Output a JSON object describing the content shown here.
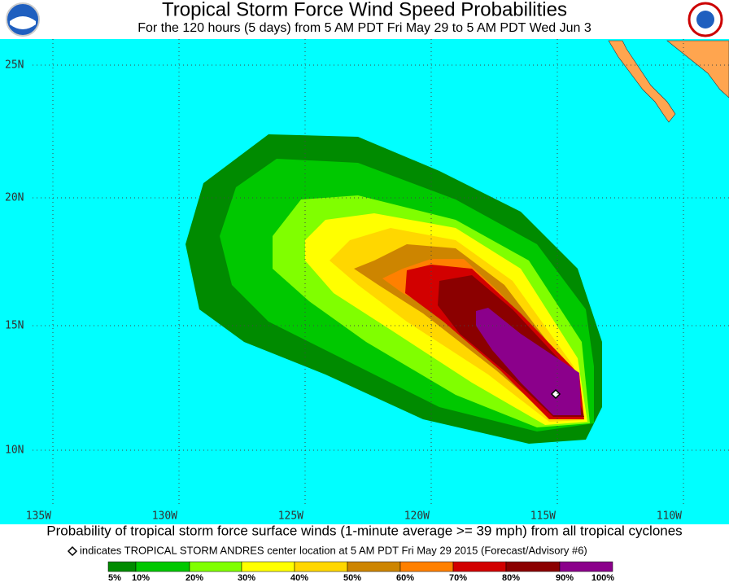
{
  "header": {
    "title": "Tropical Storm Force Wind Speed Probabilities",
    "subtitle": "For the 120 hours (5 days) from 5 AM PDT Fri May 29 to 5 AM PDT Wed Jun 3"
  },
  "map": {
    "latitude_labels": [
      "25N",
      "20N",
      "15N",
      "10N"
    ],
    "longitude_labels": [
      "135W",
      "130W",
      "125W",
      "120W",
      "115W",
      "110W"
    ]
  },
  "footer": {
    "caption": "Probability of tropical storm force surface winds (1-minute average >= 39 mph) from all tropical cyclones",
    "marker_note": "indicates TROPICAL STORM ANDRES center location at 5 AM PDT Fri May 29 2015 (Forecast/Advisory #6)"
  },
  "legend": {
    "labels": [
      "5%",
      "10%",
      "20%",
      "30%",
      "40%",
      "50%",
      "60%",
      "70%",
      "80%",
      "90%",
      "100%"
    ],
    "colors": [
      "#008b00",
      "#00c800",
      "#80ff00",
      "#ffff00",
      "#ffd700",
      "#cd8500",
      "#ff8000",
      "#d20000",
      "#8b0000",
      "#8b008b"
    ]
  }
}
